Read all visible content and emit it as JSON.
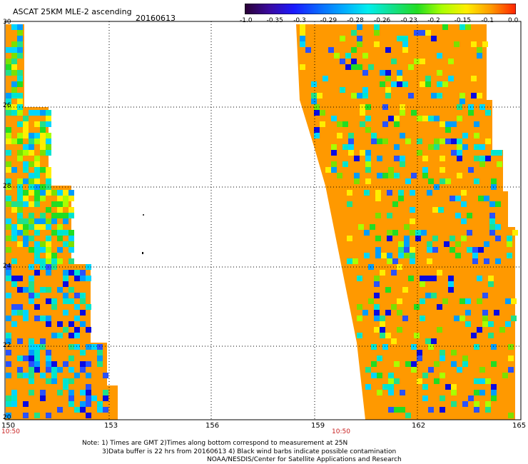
{
  "header": {
    "title": "ASCAT 25KM MLE-2 ascending",
    "date": "20160613"
  },
  "colorbar": {
    "tick_labels": [
      "-1.0",
      "-0.35",
      "-0.3",
      "-0.29",
      "-0.28",
      "-0.26",
      "-0.23",
      "-0.2",
      "-0.15",
      "-0.1",
      "0.0"
    ],
    "stops": [
      "#2a0033",
      "#3a0aa0",
      "#1a1aff",
      "#0a66ff",
      "#00aaff",
      "#00eeee",
      "#12e08a",
      "#22dd22",
      "#aaff00",
      "#ffee00",
      "#ff9900",
      "#ff2200"
    ]
  },
  "map": {
    "lat_labels": [
      "30",
      "28",
      "26",
      "24",
      "22",
      "20"
    ],
    "lon_labels": [
      "150",
      "153",
      "156",
      "159",
      "162",
      "165"
    ],
    "time_labels": [
      "10:50",
      "10:50"
    ],
    "palette": {
      "fill": "#ff9900",
      "values": [
        "#0a0ae0",
        "#2a52ff",
        "#009dff",
        "#00d6ff",
        "#00e5d0",
        "#21e08a",
        "#22dd22",
        "#7be000",
        "#aaff00",
        "#ffee00"
      ]
    }
  },
  "footer": {
    "note_line1": "Note: 1) Times are GMT 2)Times along bottom correspond to measurement at 25N",
    "note_line2": "3)Data buffer is 22 hrs from 20160613 4) Black wind barbs indicate possible contamination",
    "credit": "NOAA/NESDIS/Center for Satellite Applications and Research"
  }
}
